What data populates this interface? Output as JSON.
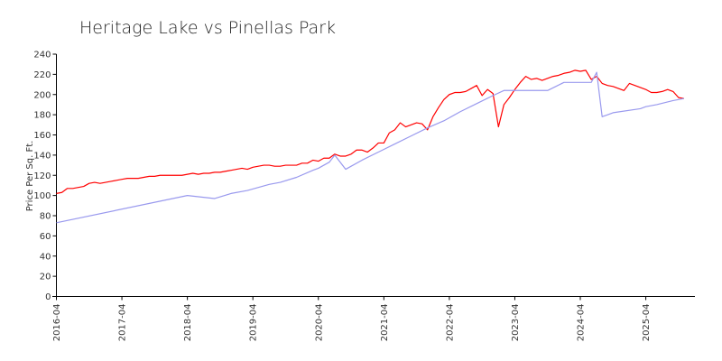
{
  "chart_data": {
    "type": "line",
    "title": "Heritage Lake vs Pinellas Park",
    "ylabel": "Price Per Sq. Ft.",
    "xlabel": "",
    "ylim": [
      0,
      240
    ],
    "yticks": [
      0,
      20,
      40,
      60,
      80,
      100,
      120,
      140,
      160,
      180,
      200,
      220,
      240
    ],
    "xlim": [
      "2016-04",
      "2026-01"
    ],
    "xticks": [
      "2016-04",
      "2017-04",
      "2018-04",
      "2019-04",
      "2020-04",
      "2021-04",
      "2022-04",
      "2023-04",
      "2024-04",
      "2025-04"
    ],
    "grid": false,
    "legend": "none",
    "series": [
      {
        "color": "#ff0000",
        "points": [
          [
            "2016-04",
            102
          ],
          [
            "2016-05",
            103
          ],
          [
            "2016-06",
            107
          ],
          [
            "2016-07",
            107
          ],
          [
            "2016-08",
            108
          ],
          [
            "2016-09",
            109
          ],
          [
            "2016-10",
            112
          ],
          [
            "2016-11",
            113
          ],
          [
            "2016-12",
            112
          ],
          [
            "2017-01",
            113
          ],
          [
            "2017-02",
            114
          ],
          [
            "2017-03",
            115
          ],
          [
            "2017-04",
            116
          ],
          [
            "2017-05",
            117
          ],
          [
            "2017-06",
            117
          ],
          [
            "2017-07",
            117
          ],
          [
            "2017-08",
            118
          ],
          [
            "2017-09",
            119
          ],
          [
            "2017-10",
            119
          ],
          [
            "2017-11",
            120
          ],
          [
            "2017-12",
            120
          ],
          [
            "2018-01",
            120
          ],
          [
            "2018-02",
            120
          ],
          [
            "2018-03",
            120
          ],
          [
            "2018-04",
            121
          ],
          [
            "2018-05",
            122
          ],
          [
            "2018-06",
            121
          ],
          [
            "2018-07",
            122
          ],
          [
            "2018-08",
            122
          ],
          [
            "2018-09",
            123
          ],
          [
            "2018-10",
            123
          ],
          [
            "2018-11",
            124
          ],
          [
            "2018-12",
            125
          ],
          [
            "2019-01",
            126
          ],
          [
            "2019-02",
            127
          ],
          [
            "2019-03",
            126
          ],
          [
            "2019-04",
            128
          ],
          [
            "2019-05",
            129
          ],
          [
            "2019-06",
            130
          ],
          [
            "2019-07",
            130
          ],
          [
            "2019-08",
            129
          ],
          [
            "2019-09",
            129
          ],
          [
            "2019-10",
            130
          ],
          [
            "2019-11",
            130
          ],
          [
            "2019-12",
            130
          ],
          [
            "2020-01",
            132
          ],
          [
            "2020-02",
            132
          ],
          [
            "2020-03",
            135
          ],
          [
            "2020-04",
            134
          ],
          [
            "2020-05",
            137
          ],
          [
            "2020-06",
            137
          ],
          [
            "2020-07",
            141
          ],
          [
            "2020-08",
            139
          ],
          [
            "2020-09",
            139
          ],
          [
            "2020-10",
            141
          ],
          [
            "2020-11",
            145
          ],
          [
            "2020-12",
            145
          ],
          [
            "2021-01",
            143
          ],
          [
            "2021-02",
            147
          ],
          [
            "2021-03",
            152
          ],
          [
            "2021-04",
            152
          ],
          [
            "2021-05",
            162
          ],
          [
            "2021-06",
            165
          ],
          [
            "2021-07",
            172
          ],
          [
            "2021-08",
            168
          ],
          [
            "2021-09",
            170
          ],
          [
            "2021-10",
            172
          ],
          [
            "2021-11",
            171
          ],
          [
            "2021-12",
            165
          ],
          [
            "2022-01",
            178
          ],
          [
            "2022-02",
            187
          ],
          [
            "2022-03",
            195
          ],
          [
            "2022-04",
            200
          ],
          [
            "2022-05",
            202
          ],
          [
            "2022-06",
            202
          ],
          [
            "2022-07",
            203
          ],
          [
            "2022-08",
            206
          ],
          [
            "2022-09",
            209
          ],
          [
            "2022-10",
            199
          ],
          [
            "2022-11",
            205
          ],
          [
            "2022-12",
            201
          ],
          [
            "2023-01",
            168
          ],
          [
            "2023-02",
            190
          ],
          [
            "2023-03",
            197
          ],
          [
            "2023-04",
            205
          ],
          [
            "2023-05",
            212
          ],
          [
            "2023-06",
            218
          ],
          [
            "2023-07",
            215
          ],
          [
            "2023-08",
            216
          ],
          [
            "2023-09",
            214
          ],
          [
            "2023-10",
            216
          ],
          [
            "2023-11",
            218
          ],
          [
            "2023-12",
            219
          ],
          [
            "2024-01",
            221
          ],
          [
            "2024-02",
            222
          ],
          [
            "2024-03",
            224
          ],
          [
            "2024-04",
            223
          ],
          [
            "2024-05",
            224
          ],
          [
            "2024-06",
            215
          ],
          [
            "2024-07",
            218
          ],
          [
            "2024-08",
            211
          ],
          [
            "2024-09",
            209
          ],
          [
            "2024-10",
            208
          ],
          [
            "2024-11",
            206
          ],
          [
            "2024-12",
            204
          ],
          [
            "2025-01",
            211
          ],
          [
            "2025-02",
            209
          ],
          [
            "2025-03",
            207
          ],
          [
            "2025-04",
            205
          ],
          [
            "2025-05",
            202
          ],
          [
            "2025-06",
            202
          ],
          [
            "2025-07",
            203
          ],
          [
            "2025-08",
            205
          ],
          [
            "2025-09",
            203
          ],
          [
            "2025-10",
            197
          ],
          [
            "2025-11",
            196
          ]
        ]
      },
      {
        "color": "#9999ee",
        "points": [
          [
            "2016-04",
            73
          ],
          [
            "2018-04",
            100
          ],
          [
            "2018-09",
            97
          ],
          [
            "2018-12",
            102
          ],
          [
            "2019-03",
            105
          ],
          [
            "2019-07",
            111
          ],
          [
            "2019-09",
            113
          ],
          [
            "2019-12",
            118
          ],
          [
            "2020-03",
            125
          ],
          [
            "2020-04",
            127
          ],
          [
            "2020-06",
            133
          ],
          [
            "2020-07",
            140
          ],
          [
            "2020-09",
            126
          ],
          [
            "2020-12",
            135
          ],
          [
            "2021-03",
            143
          ],
          [
            "2021-06",
            151
          ],
          [
            "2021-09",
            159
          ],
          [
            "2021-12",
            167
          ],
          [
            "2022-03",
            174
          ],
          [
            "2022-06",
            183
          ],
          [
            "2022-09",
            191
          ],
          [
            "2022-12",
            199
          ],
          [
            "2023-02",
            204
          ],
          [
            "2023-04",
            204
          ],
          [
            "2023-10",
            204
          ],
          [
            "2024-01",
            212
          ],
          [
            "2024-06",
            212
          ],
          [
            "2024-07",
            222
          ],
          [
            "2024-08",
            178
          ],
          [
            "2024-09",
            180
          ],
          [
            "2024-10",
            182
          ],
          [
            "2025-03",
            186
          ],
          [
            "2025-04",
            188
          ],
          [
            "2025-06",
            190
          ],
          [
            "2025-09",
            194
          ],
          [
            "2025-11",
            196
          ]
        ]
      }
    ]
  }
}
